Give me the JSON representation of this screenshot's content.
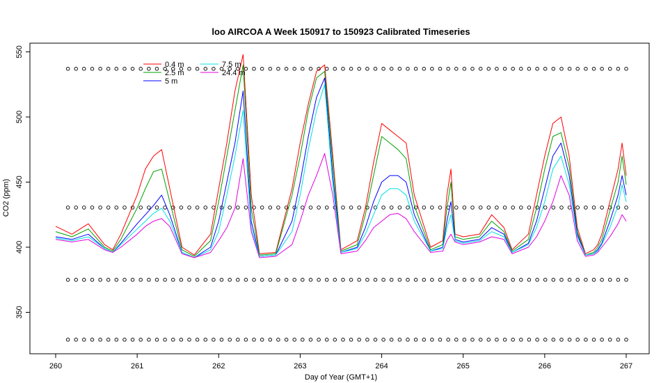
{
  "chart_data": {
    "type": "line",
    "title": "loo AIRCOA A  Week 150917 to 150923  Calibrated Timeseries",
    "xlabel": "Day of Year (GMT+1)",
    "ylabel": "CO2 (ppm)",
    "xlim": [
      260,
      267
    ],
    "ylim": [
      325,
      555
    ],
    "xticks": [
      260,
      261,
      262,
      263,
      264,
      265,
      266,
      267
    ],
    "yticks": [
      350,
      400,
      450,
      500,
      550
    ],
    "grid": false,
    "legend_position": "top-left",
    "series": [
      {
        "name": "0.4 m",
        "color": "#ff0000",
        "x": [
          260.0,
          260.2,
          260.4,
          260.6,
          260.7,
          260.8,
          261.0,
          261.1,
          261.2,
          261.3,
          261.4,
          261.55,
          261.7,
          261.9,
          262.0,
          262.1,
          262.2,
          262.3,
          262.4,
          262.5,
          262.7,
          262.9,
          263.0,
          263.1,
          263.2,
          263.3,
          263.4,
          263.5,
          263.7,
          263.8,
          263.9,
          264.0,
          264.1,
          264.2,
          264.3,
          264.4,
          264.6,
          264.75,
          264.8,
          264.85,
          264.9,
          265.0,
          265.2,
          265.35,
          265.5,
          265.6,
          265.8,
          265.9,
          266.0,
          266.1,
          266.2,
          266.3,
          266.4,
          266.5,
          266.6,
          266.65,
          266.7,
          266.8,
          266.9,
          266.95,
          267.0
        ],
        "y": [
          416,
          410,
          418,
          402,
          398,
          410,
          440,
          460,
          470,
          475,
          445,
          400,
          394,
          410,
          445,
          480,
          520,
          548,
          440,
          395,
          396,
          445,
          480,
          510,
          535,
          540,
          470,
          398,
          405,
          430,
          465,
          495,
          490,
          485,
          480,
          440,
          400,
          405,
          440,
          460,
          410,
          408,
          410,
          425,
          415,
          398,
          410,
          440,
          470,
          495,
          500,
          470,
          415,
          395,
          398,
          402,
          410,
          435,
          460,
          480,
          455
        ]
      },
      {
        "name": "2.5 m",
        "color": "#00a000",
        "x": [
          260.0,
          260.2,
          260.4,
          260.6,
          260.7,
          260.8,
          261.0,
          261.1,
          261.2,
          261.3,
          261.4,
          261.55,
          261.7,
          261.9,
          262.0,
          262.1,
          262.2,
          262.3,
          262.4,
          262.5,
          262.7,
          262.9,
          263.0,
          263.1,
          263.2,
          263.3,
          263.4,
          263.5,
          263.7,
          263.8,
          263.9,
          264.0,
          264.1,
          264.2,
          264.3,
          264.4,
          264.6,
          264.75,
          264.8,
          264.85,
          264.9,
          265.0,
          265.2,
          265.35,
          265.5,
          265.6,
          265.8,
          265.9,
          266.0,
          266.1,
          266.2,
          266.3,
          266.4,
          266.5,
          266.6,
          266.65,
          266.7,
          266.8,
          266.9,
          266.95,
          267.0
        ],
        "y": [
          412,
          408,
          414,
          400,
          397,
          406,
          430,
          445,
          458,
          460,
          435,
          398,
          393,
          405,
          435,
          470,
          505,
          540,
          430,
          394,
          395,
          440,
          470,
          505,
          530,
          535,
          465,
          397,
          402,
          425,
          455,
          485,
          480,
          475,
          468,
          432,
          398,
          402,
          430,
          450,
          408,
          406,
          408,
          420,
          412,
          397,
          406,
          430,
          460,
          485,
          488,
          462,
          412,
          394,
          396,
          400,
          406,
          428,
          450,
          470,
          448
        ]
      },
      {
        "name": "5 m",
        "color": "#0000ff",
        "x": [
          260.0,
          260.2,
          260.4,
          260.6,
          260.7,
          260.8,
          261.0,
          261.1,
          261.2,
          261.3,
          261.4,
          261.55,
          261.7,
          261.9,
          262.0,
          262.1,
          262.2,
          262.3,
          262.4,
          262.5,
          262.7,
          262.9,
          263.0,
          263.1,
          263.2,
          263.3,
          263.4,
          263.5,
          263.7,
          263.8,
          263.9,
          264.0,
          264.1,
          264.2,
          264.3,
          264.4,
          264.6,
          264.75,
          264.8,
          264.85,
          264.9,
          265.0,
          265.2,
          265.35,
          265.5,
          265.6,
          265.8,
          265.9,
          266.0,
          266.1,
          266.2,
          266.3,
          266.4,
          266.5,
          266.6,
          266.65,
          266.7,
          266.8,
          266.9,
          266.95,
          267.0
        ],
        "y": [
          408,
          406,
          410,
          399,
          396,
          403,
          418,
          425,
          432,
          440,
          425,
          396,
          392,
          400,
          420,
          450,
          480,
          520,
          420,
          393,
          394,
          420,
          450,
          485,
          515,
          530,
          455,
          396,
          400,
          415,
          435,
          450,
          455,
          455,
          450,
          425,
          397,
          400,
          420,
          435,
          406,
          404,
          406,
          415,
          410,
          396,
          403,
          420,
          445,
          470,
          480,
          455,
          410,
          394,
          395,
          398,
          403,
          420,
          440,
          455,
          440
        ]
      },
      {
        "name": "7.5 m",
        "color": "#00e0e0",
        "x": [
          260.0,
          260.2,
          260.4,
          260.6,
          260.7,
          260.8,
          261.0,
          261.1,
          261.2,
          261.3,
          261.4,
          261.55,
          261.7,
          261.9,
          262.0,
          262.1,
          262.2,
          262.3,
          262.4,
          262.5,
          262.7,
          262.9,
          263.0,
          263.1,
          263.2,
          263.3,
          263.4,
          263.5,
          263.7,
          263.8,
          263.9,
          264.0,
          264.1,
          264.2,
          264.3,
          264.4,
          264.6,
          264.75,
          264.8,
          264.85,
          264.9,
          265.0,
          265.2,
          265.35,
          265.5,
          265.6,
          265.8,
          265.9,
          266.0,
          266.1,
          266.2,
          266.3,
          266.4,
          266.5,
          266.6,
          266.65,
          266.7,
          266.8,
          266.9,
          266.95,
          267.0
        ],
        "y": [
          407,
          405,
          408,
          399,
          396,
          402,
          414,
          420,
          426,
          430,
          420,
          396,
          392,
          398,
          412,
          440,
          470,
          505,
          415,
          393,
          394,
          412,
          440,
          475,
          505,
          525,
          448,
          396,
          399,
          410,
          425,
          440,
          445,
          445,
          440,
          420,
          397,
          399,
          415,
          425,
          405,
          403,
          405,
          412,
          408,
          396,
          402,
          415,
          435,
          460,
          470,
          448,
          408,
          394,
          395,
          397,
          402,
          415,
          432,
          448,
          435
        ]
      },
      {
        "name": "24.4 m",
        "color": "#e000e0",
        "x": [
          260.0,
          260.2,
          260.4,
          260.6,
          260.7,
          260.8,
          261.0,
          261.1,
          261.2,
          261.3,
          261.4,
          261.55,
          261.7,
          261.9,
          262.0,
          262.1,
          262.2,
          262.3,
          262.4,
          262.5,
          262.7,
          262.9,
          263.0,
          263.1,
          263.2,
          263.3,
          263.4,
          263.5,
          263.7,
          263.8,
          263.9,
          264.0,
          264.1,
          264.2,
          264.3,
          264.4,
          264.6,
          264.75,
          264.8,
          264.85,
          264.9,
          265.0,
          265.2,
          265.35,
          265.5,
          265.6,
          265.8,
          265.9,
          266.0,
          266.1,
          266.2,
          266.3,
          266.4,
          266.5,
          266.6,
          266.65,
          266.7,
          266.8,
          266.9,
          266.95,
          267.0
        ],
        "y": [
          406,
          404,
          406,
          398,
          396,
          400,
          410,
          416,
          420,
          422,
          416,
          395,
          392,
          396,
          405,
          415,
          430,
          468,
          412,
          392,
          393,
          402,
          420,
          440,
          455,
          472,
          440,
          395,
          397,
          405,
          415,
          420,
          425,
          426,
          422,
          412,
          396,
          397,
          405,
          410,
          404,
          402,
          404,
          408,
          406,
          395,
          400,
          408,
          420,
          435,
          455,
          440,
          405,
          393,
          394,
          396,
          400,
          408,
          418,
          425,
          420
        ]
      }
    ],
    "marker_rows": {
      "marker": "o",
      "color": "#000000",
      "y_values": [
        537,
        430.5,
        375,
        329
      ],
      "x_start": 260.15,
      "x_end": 267.0,
      "count": 70
    }
  }
}
